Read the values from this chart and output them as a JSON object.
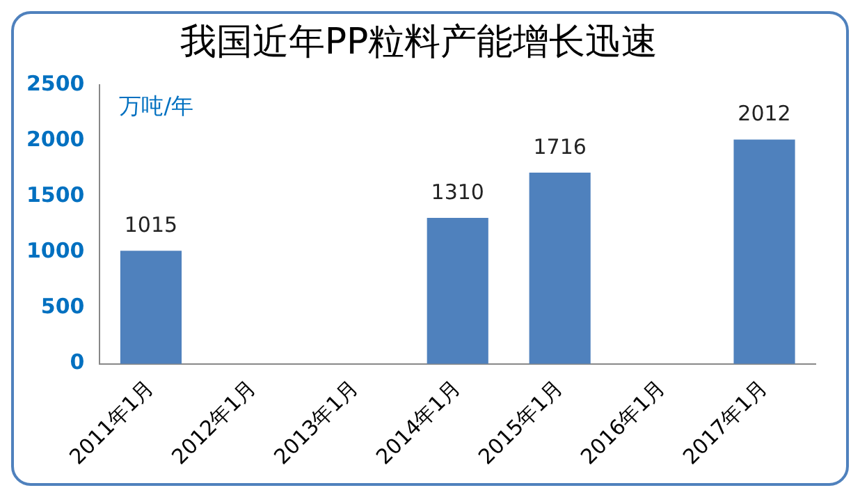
{
  "chart_data": {
    "type": "bar",
    "title": "我国近年PP粒料产能增长迅速",
    "ylabel": "万吨/年",
    "categories": [
      "2011年1月",
      "2012年1月",
      "2013年1月",
      "2014年1月",
      "2015年1月",
      "2016年1月",
      "2017年1月"
    ],
    "values": [
      1015,
      null,
      null,
      1310,
      1716,
      null,
      2012
    ],
    "color": "#4f81bd",
    "ylim": [
      0,
      2500
    ],
    "yticks": [
      0,
      500,
      1000,
      1500,
      2000,
      2500
    ],
    "grid": false,
    "legend": false,
    "data_labels": true
  }
}
